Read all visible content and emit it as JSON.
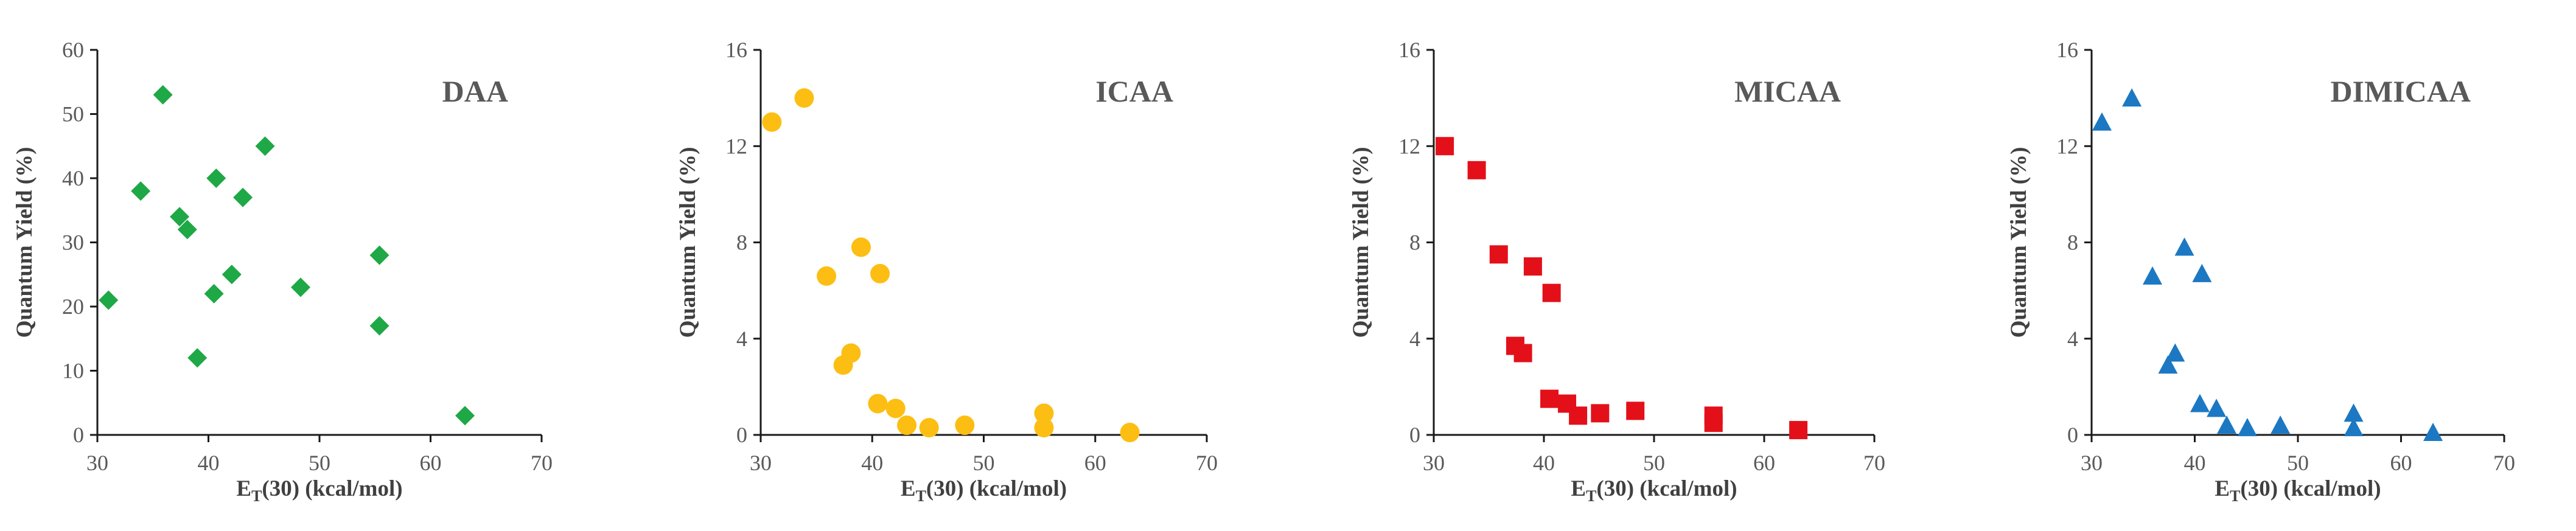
{
  "chart_data": [
    {
      "type": "scatter",
      "title": "DAA",
      "xlabel": "E_T(30) (kcal/mol)",
      "xlabel_main": "E",
      "xlabel_sub": "T",
      "xlabel_rest": "(30) (kcal/mol)",
      "ylabel": "Quantum Yield (%)",
      "xlim": [
        30,
        70
      ],
      "ylim": [
        0,
        60
      ],
      "xticks": [
        "30",
        "40",
        "50",
        "60",
        "70"
      ],
      "yticks": [
        "0",
        "10",
        "20",
        "30",
        "40",
        "50",
        "60"
      ],
      "marker": "diamond",
      "color": "#1fa846",
      "points": [
        {
          "x": 31.0,
          "y": 21
        },
        {
          "x": 33.9,
          "y": 38
        },
        {
          "x": 35.9,
          "y": 53
        },
        {
          "x": 37.4,
          "y": 34
        },
        {
          "x": 38.1,
          "y": 32
        },
        {
          "x": 39.0,
          "y": 12
        },
        {
          "x": 40.5,
          "y": 22
        },
        {
          "x": 40.7,
          "y": 40
        },
        {
          "x": 42.1,
          "y": 25
        },
        {
          "x": 43.1,
          "y": 37
        },
        {
          "x": 45.1,
          "y": 45
        },
        {
          "x": 48.3,
          "y": 23
        },
        {
          "x": 55.4,
          "y": 28
        },
        {
          "x": 55.4,
          "y": 17
        },
        {
          "x": 63.1,
          "y": 3
        }
      ]
    },
    {
      "type": "scatter",
      "title": "ICAA",
      "xlabel": "E_T(30) (kcal/mol)",
      "xlabel_main": "E",
      "xlabel_sub": "T",
      "xlabel_rest": "(30) (kcal/mol)",
      "ylabel": "Quantum Yield (%)",
      "xlim": [
        30,
        70
      ],
      "ylim": [
        0,
        16
      ],
      "xticks": [
        "30",
        "40",
        "50",
        "60",
        "70"
      ],
      "yticks": [
        "0",
        "4",
        "8",
        "12",
        "16"
      ],
      "marker": "circle",
      "color": "#fdbe13",
      "points": [
        {
          "x": 31.0,
          "y": 13.0
        },
        {
          "x": 33.9,
          "y": 14.0
        },
        {
          "x": 35.9,
          "y": 6.6
        },
        {
          "x": 37.4,
          "y": 2.9
        },
        {
          "x": 38.1,
          "y": 3.4
        },
        {
          "x": 39.0,
          "y": 7.8
        },
        {
          "x": 40.5,
          "y": 1.3
        },
        {
          "x": 40.7,
          "y": 6.7
        },
        {
          "x": 42.1,
          "y": 1.1
        },
        {
          "x": 43.1,
          "y": 0.4
        },
        {
          "x": 45.1,
          "y": 0.3
        },
        {
          "x": 48.3,
          "y": 0.4
        },
        {
          "x": 55.4,
          "y": 0.9
        },
        {
          "x": 55.4,
          "y": 0.3
        },
        {
          "x": 63.1,
          "y": 0.1
        }
      ]
    },
    {
      "type": "scatter",
      "title": "MICAA",
      "xlabel": "E_T(30) (kcal/mol)",
      "xlabel_main": "E",
      "xlabel_sub": "T",
      "xlabel_rest": "(30) (kcal/mol)",
      "ylabel": "Quantum Yield (%)",
      "xlim": [
        30,
        70
      ],
      "ylim": [
        0,
        16
      ],
      "xticks": [
        "30",
        "40",
        "50",
        "60",
        "70"
      ],
      "yticks": [
        "0",
        "4",
        "8",
        "12",
        "16"
      ],
      "marker": "square",
      "color": "#e3101a",
      "points": [
        {
          "x": 31.0,
          "y": 12.0
        },
        {
          "x": 33.9,
          "y": 11.0
        },
        {
          "x": 35.9,
          "y": 7.5
        },
        {
          "x": 37.4,
          "y": 3.7
        },
        {
          "x": 38.1,
          "y": 3.4
        },
        {
          "x": 39.0,
          "y": 7.0
        },
        {
          "x": 40.5,
          "y": 1.5
        },
        {
          "x": 40.7,
          "y": 5.9
        },
        {
          "x": 42.1,
          "y": 1.3
        },
        {
          "x": 43.1,
          "y": 0.8
        },
        {
          "x": 45.1,
          "y": 0.9
        },
        {
          "x": 48.3,
          "y": 1.0
        },
        {
          "x": 55.4,
          "y": 0.8
        },
        {
          "x": 55.4,
          "y": 0.5
        },
        {
          "x": 63.1,
          "y": 0.2
        }
      ]
    },
    {
      "type": "scatter",
      "title": "DIMICAA",
      "xlabel": "E_T(30) (kcal/mol)",
      "xlabel_main": "E",
      "xlabel_sub": "T",
      "xlabel_rest": "(30) (kcal/mol)",
      "ylabel": "Quantum Yield (%)",
      "xlim": [
        30,
        70
      ],
      "ylim": [
        0,
        16
      ],
      "xticks": [
        "30",
        "40",
        "50",
        "60",
        "70"
      ],
      "yticks": [
        "0",
        "4",
        "8",
        "12",
        "16"
      ],
      "marker": "triangle",
      "color": "#1c78c2",
      "points": [
        {
          "x": 31.0,
          "y": 13.0
        },
        {
          "x": 33.9,
          "y": 14.0
        },
        {
          "x": 35.9,
          "y": 6.6
        },
        {
          "x": 37.4,
          "y": 2.9
        },
        {
          "x": 38.1,
          "y": 3.4
        },
        {
          "x": 39.0,
          "y": 7.8
        },
        {
          "x": 40.5,
          "y": 1.3
        },
        {
          "x": 40.7,
          "y": 6.7
        },
        {
          "x": 42.1,
          "y": 1.1
        },
        {
          "x": 43.1,
          "y": 0.4
        },
        {
          "x": 45.1,
          "y": 0.3
        },
        {
          "x": 48.3,
          "y": 0.4
        },
        {
          "x": 55.4,
          "y": 0.9
        },
        {
          "x": 55.4,
          "y": 0.3
        },
        {
          "x": 63.1,
          "y": 0.1
        }
      ]
    }
  ]
}
